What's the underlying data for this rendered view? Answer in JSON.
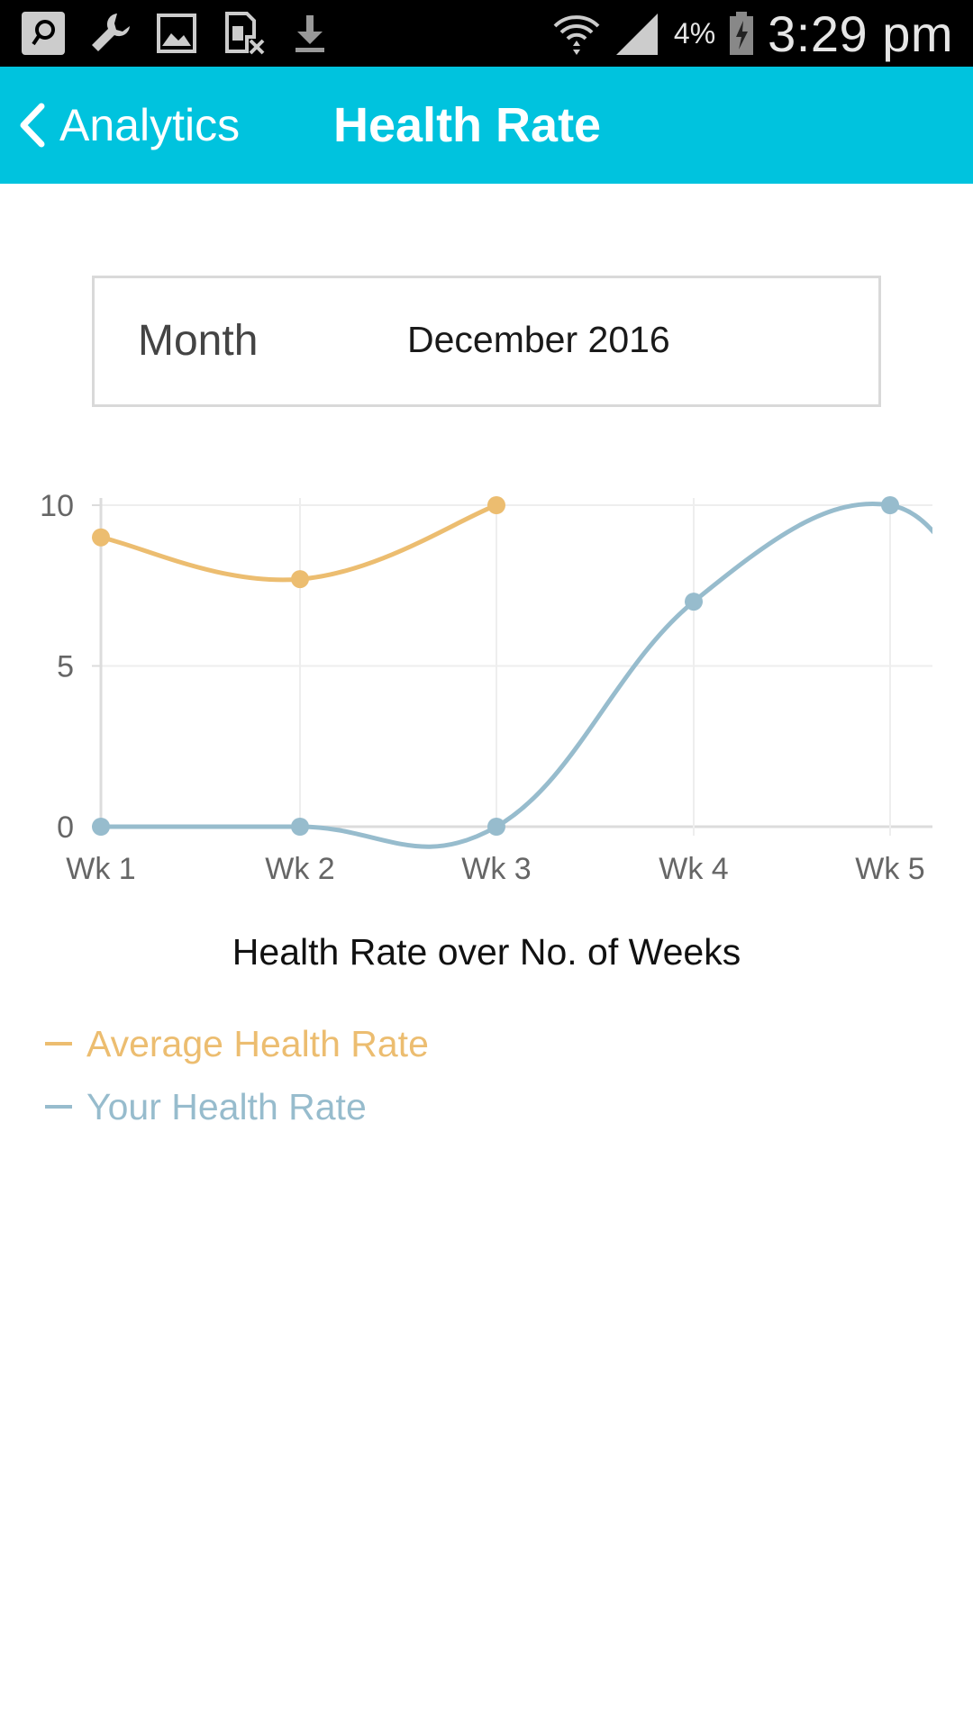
{
  "status_bar": {
    "battery_percent": "4%",
    "time": "3:29 pm",
    "left_icons": [
      "notification-icon",
      "wrench-icon",
      "image-icon",
      "sim-off-icon",
      "download-icon"
    ],
    "right_icons": [
      "wifi-icon",
      "signal-icon",
      "battery-charging-icon"
    ]
  },
  "app_bar": {
    "back_label": "Analytics",
    "title": "Health Rate",
    "background_color": "#00c3de"
  },
  "month_selector": {
    "label": "Month",
    "value": "December 2016"
  },
  "chart_data": {
    "type": "line",
    "categories": [
      "Wk 1",
      "Wk 2",
      "Wk 3",
      "Wk 4",
      "Wk 5"
    ],
    "series": [
      {
        "name": "Average Health Rate",
        "color": "#ecbd70",
        "values": [
          9,
          7.7,
          10,
          null,
          null
        ]
      },
      {
        "name": "Your Health Rate",
        "color": "#97bccd",
        "values": [
          0,
          0,
          0,
          7,
          10
        ]
      }
    ],
    "ylim": [
      0,
      10
    ],
    "yticks": [
      "0",
      "5",
      "10"
    ],
    "title": "Health Rate over No. of Weeks",
    "legend": "bottom-left",
    "grid": true
  }
}
